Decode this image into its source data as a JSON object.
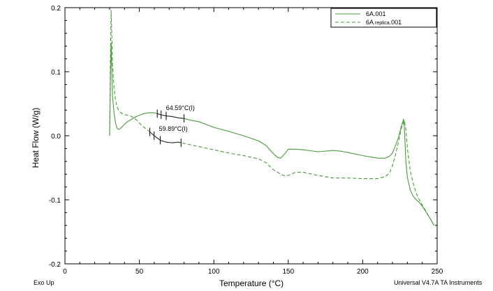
{
  "chart_data": {
    "type": "line",
    "title": "",
    "xlabel": "Temperature (°C)",
    "ylabel": "Heat Flow (W/g)",
    "xlim": [
      0,
      250
    ],
    "ylim": [
      -0.2,
      0.2
    ],
    "xticks": [
      0,
      50,
      100,
      150,
      200,
      250
    ],
    "xtick_labels": [
      "0",
      "50",
      "100",
      "150",
      "200",
      "250"
    ],
    "yticks": [
      0.2,
      0.1,
      0.0,
      -0.1,
      -0.2
    ],
    "ytick_labels": [
      "0.2",
      "0.1",
      "0.0",
      "-0.1",
      "-0.2"
    ],
    "grid": false,
    "legend_position": "top-right",
    "legend": [
      {
        "main": "6A.001",
        "sub": "",
        "tail": "",
        "style": "solid"
      },
      {
        "main": "6A ",
        "sub": "replica",
        "tail": ".001",
        "style": "dashed"
      }
    ],
    "series": [
      {
        "name": "6A.001",
        "style": "solid",
        "color": "#4a9a3c",
        "x": [
          30,
          30.5,
          31,
          31.5,
          32,
          33,
          34,
          35,
          36,
          37,
          38,
          40,
          42,
          45,
          48,
          52,
          56,
          60,
          64,
          68,
          72,
          76,
          80,
          85,
          90,
          100,
          110,
          120,
          130,
          135,
          140,
          143,
          145,
          148,
          150,
          155,
          160,
          170,
          180,
          185,
          190,
          200,
          210,
          215,
          218,
          220,
          222,
          224,
          226,
          227.5,
          228,
          229,
          230,
          232,
          234,
          236,
          238,
          240,
          242,
          245,
          248
        ],
        "y": [
          0.0,
          0.08,
          0.145,
          0.1,
          0.06,
          0.035,
          0.02,
          0.012,
          0.01,
          0.011,
          0.013,
          0.018,
          0.022,
          0.026,
          0.03,
          0.034,
          0.036,
          0.036,
          0.033,
          0.031,
          0.03,
          0.028,
          0.027,
          0.024,
          0.022,
          0.013,
          0.007,
          0.0,
          -0.008,
          -0.015,
          -0.028,
          -0.034,
          -0.035,
          -0.027,
          -0.021,
          -0.021,
          -0.022,
          -0.025,
          -0.023,
          -0.024,
          -0.026,
          -0.031,
          -0.035,
          -0.035,
          -0.032,
          -0.027,
          -0.016,
          -0.003,
          0.015,
          0.026,
          0.012,
          -0.04,
          -0.065,
          -0.085,
          -0.095,
          -0.1,
          -0.104,
          -0.11,
          -0.117,
          -0.128,
          -0.14
        ]
      },
      {
        "name": "6A replica.001",
        "style": "dashed",
        "color": "#4a9a3c",
        "x": [
          30,
          30.5,
          31,
          31.5,
          32,
          33,
          34,
          35,
          36,
          38,
          40,
          42,
          45,
          48,
          52,
          56,
          60,
          64,
          68,
          72,
          76,
          80,
          90,
          100,
          110,
          120,
          130,
          135,
          140,
          145,
          148,
          150,
          155,
          160,
          170,
          180,
          190,
          200,
          210,
          215,
          218,
          220,
          222,
          224,
          226,
          228,
          229,
          230,
          232,
          234,
          236,
          238,
          240,
          242,
          245,
          248
        ],
        "y": [
          0.0,
          0.11,
          0.196,
          0.155,
          0.11,
          0.075,
          0.055,
          0.045,
          0.04,
          0.035,
          0.033,
          0.032,
          0.03,
          0.025,
          0.015,
          0.008,
          0.0,
          -0.007,
          -0.01,
          -0.011,
          -0.01,
          -0.012,
          -0.017,
          -0.022,
          -0.027,
          -0.031,
          -0.036,
          -0.042,
          -0.053,
          -0.06,
          -0.063,
          -0.062,
          -0.057,
          -0.057,
          -0.062,
          -0.066,
          -0.066,
          -0.067,
          -0.067,
          -0.064,
          -0.058,
          -0.047,
          -0.03,
          -0.01,
          0.012,
          0.024,
          0.01,
          -0.02,
          -0.055,
          -0.075,
          -0.09,
          -0.1,
          -0.108,
          -0.116,
          -0.128,
          -0.14
        ]
      }
    ],
    "annotations": [
      {
        "text": "64.59°C(I)",
        "x": 64.59,
        "y": 0.036,
        "series": "6A.001",
        "markers": [
          62,
          64.59,
          68,
          80
        ]
      },
      {
        "text": "59.89°C(I)",
        "x": 59.89,
        "y": 0.002,
        "series": "6A replica.001",
        "markers": [
          57,
          59.89,
          64,
          78
        ]
      }
    ]
  },
  "footer": {
    "left": "Exo Up",
    "right": "Universal V4.7A TA Instruments"
  }
}
